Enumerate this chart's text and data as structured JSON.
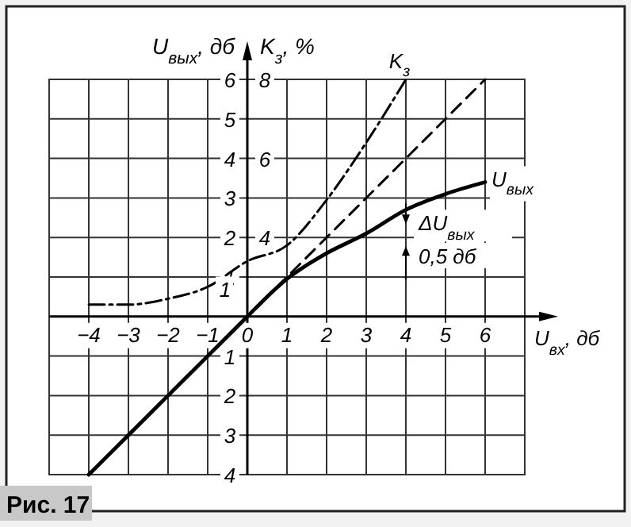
{
  "chart_data": {
    "type": "line",
    "xlabel": "U$_{вх}$, дб",
    "ylabel": "U$_{вых}$, дб",
    "y2label": "K$_{з}$, %",
    "xlim": [
      -5,
      7
    ],
    "ylim": [
      -4,
      6
    ],
    "y2lim": [
      -2,
      8
    ],
    "xticks": [
      {
        "value": -4,
        "label": "−4"
      },
      {
        "value": -3,
        "label": "−3"
      },
      {
        "value": -2,
        "label": "−2"
      },
      {
        "value": -1,
        "label": "−1"
      },
      0,
      1,
      2,
      3,
      4,
      5,
      6
    ],
    "yticks": [
      {
        "value": -4,
        "label": "4"
      },
      {
        "value": -3,
        "label": "3"
      },
      {
        "value": -2,
        "label": "2"
      },
      {
        "value": -1,
        "label": "1"
      },
      1,
      2,
      3,
      4,
      5,
      6
    ],
    "y2ticks": [
      4,
      6,
      8
    ],
    "grid": true,
    "marker": "none",
    "series": [
      {
        "name": "U$_{вых}$",
        "color": "#000000",
        "line_style": "solid",
        "x": [
          -4,
          -3,
          -2,
          -1,
          0,
          0.5,
          1,
          1.5,
          2,
          3,
          4,
          5,
          6
        ],
        "values": [
          -4,
          -3,
          -2,
          -1,
          0,
          0.5,
          0.95,
          1.3,
          1.6,
          2.1,
          2.7,
          3.1,
          3.4
        ]
      },
      {
        "color": "#000000",
        "line_style": "dashed",
        "x": [
          0,
          6
        ],
        "values": [
          0,
          6
        ]
      },
      {
        "name": "K$_{з}$",
        "color": "#000000",
        "line_style": "dashdot",
        "axis": "y2",
        "x": [
          -4,
          -3,
          -2,
          -1,
          0,
          1,
          2,
          3,
          4
        ],
        "values": [
          2.3,
          2.3,
          2.45,
          2.75,
          3.4,
          3.8,
          4.95,
          6.4,
          8
        ]
      }
    ],
    "annotations": [
      "1",
      "ΔU$_{вых}$",
      "0,5 дб",
      "Рис. 17"
    ]
  }
}
